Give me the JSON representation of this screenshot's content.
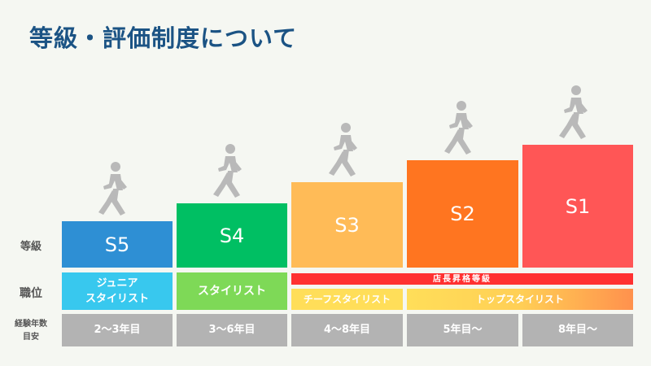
{
  "title": "等級・評価制度について",
  "row_labels": {
    "grade": "等級",
    "position": "職位",
    "experience": "経験年数\n目安"
  },
  "grades": [
    {
      "label": "S5",
      "color": "#2e8fd4"
    },
    {
      "label": "S4",
      "color": "#00bf63"
    },
    {
      "label": "S3",
      "color": "#ffbb57"
    },
    {
      "label": "S2",
      "color": "#ff7520"
    },
    {
      "label": "S1",
      "color": "#ff5656"
    }
  ],
  "positions": [
    {
      "label": "ジュニア\nスタイリスト",
      "color": "#38c8ee"
    },
    {
      "label": "スタイリスト",
      "color": "#7ed957"
    },
    {
      "label": "チーフスタイリスト",
      "color": "#ffde59"
    },
    {
      "label": "トップスタイリスト",
      "color": "#ffde59"
    }
  ],
  "manager_band": {
    "label": "店長昇格等級",
    "color": "#ff3131"
  },
  "experience": [
    "2〜3年目",
    "3〜6年目",
    "4〜8年目",
    "5年目〜",
    "8年目〜"
  ],
  "icon": "walking-person-icon"
}
